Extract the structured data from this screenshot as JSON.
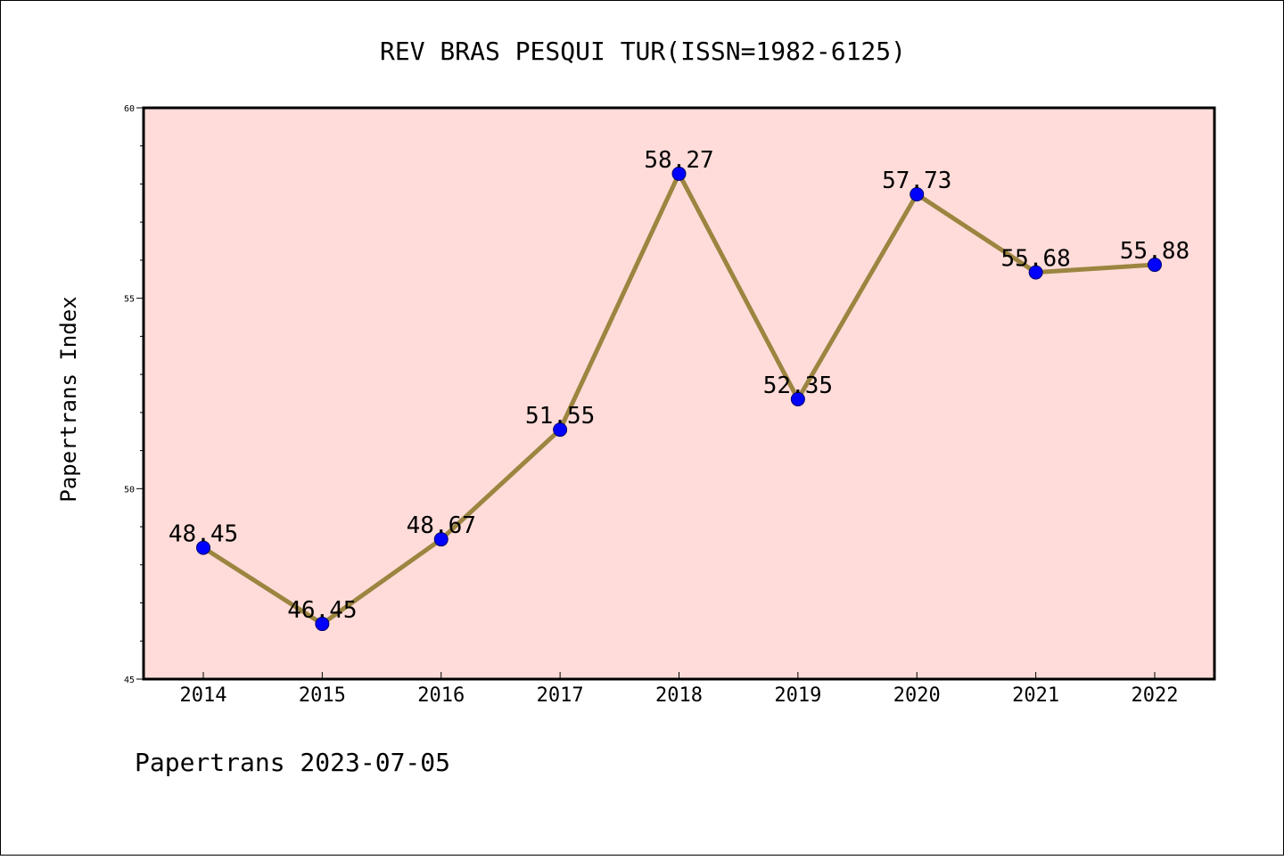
{
  "chart_data": {
    "type": "line",
    "title": "REV BRAS PESQUI TUR(ISSN=1982-6125)",
    "ylabel": "Papertrans Index",
    "xlabel": "",
    "footer": "Papertrans 2023-07-05",
    "categories": [
      "2014",
      "2015",
      "2016",
      "2017",
      "2018",
      "2019",
      "2020",
      "2021",
      "2022"
    ],
    "values": [
      48.45,
      46.45,
      48.67,
      51.55,
      58.27,
      52.35,
      57.73,
      55.68,
      55.88
    ],
    "data_labels": [
      "48.45",
      "46.45",
      "48.67",
      "51.55",
      "58.27",
      "52.35",
      "57.73",
      "55.68",
      "55.88"
    ],
    "ylim": [
      45,
      60
    ],
    "yticks": [
      45,
      50,
      55,
      60
    ],
    "ytick_labels": [
      "45",
      "50",
      "55",
      "60"
    ],
    "grid": false,
    "colors": {
      "plot_background": "#FFDCD9",
      "line": "#9B8540",
      "marker": "#0000FF",
      "marker_edge": "#00006E"
    }
  }
}
